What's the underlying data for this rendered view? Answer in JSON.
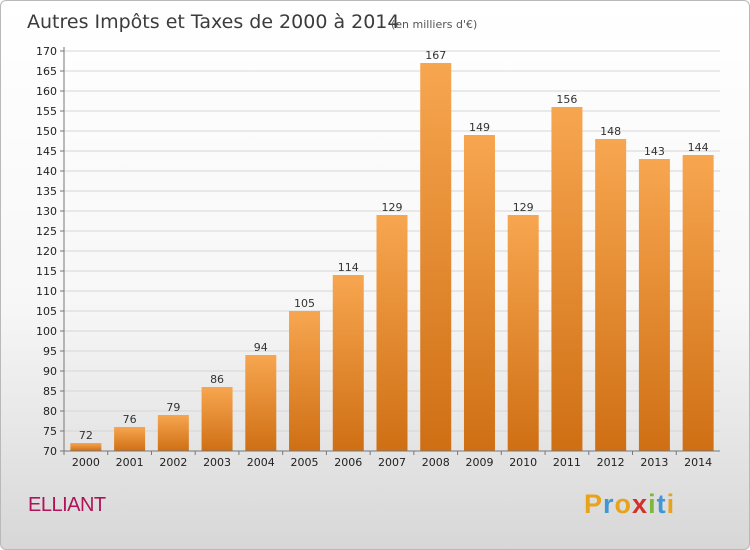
{
  "chart_data": {
    "type": "bar",
    "title": "Autres Impôts et Taxes de 2000 à 2014",
    "subtitle": "(en milliers d'€)",
    "categories": [
      "2000",
      "2001",
      "2002",
      "2003",
      "2004",
      "2005",
      "2006",
      "2007",
      "2008",
      "2009",
      "2010",
      "2011",
      "2012",
      "2013",
      "2014"
    ],
    "values": [
      72,
      76,
      79,
      86,
      94,
      105,
      114,
      129,
      167,
      149,
      129,
      156,
      148,
      143,
      144
    ],
    "ylim": [
      70,
      170
    ],
    "yticks": [
      70,
      75,
      80,
      85,
      90,
      95,
      100,
      105,
      110,
      115,
      120,
      125,
      130,
      135,
      140,
      145,
      150,
      155,
      160,
      165,
      170
    ],
    "grid": true,
    "bar_color": "#f28c28"
  },
  "footer": {
    "commune": "ELLIANT",
    "brand": [
      "P",
      "r",
      "o",
      "x",
      "i",
      "t",
      "i"
    ],
    "brand_colors": [
      "#e8a21b",
      "#3f98d4",
      "#e8a21b",
      "#d0312d",
      "#7cb83a",
      "#3f98d4",
      "#e8a21b"
    ]
  }
}
